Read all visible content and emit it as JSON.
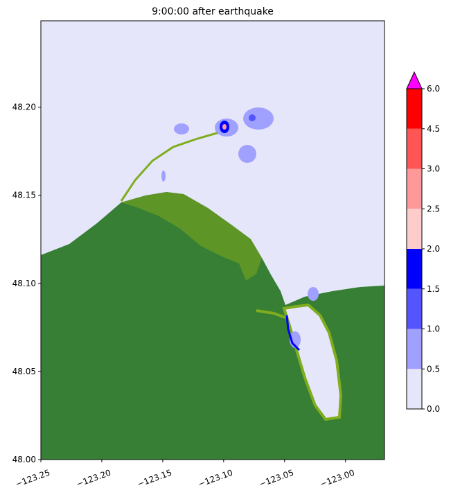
{
  "chart_data": {
    "type": "map",
    "title": "9:00:00 after earthquake",
    "xlim": [
      -123.25,
      -122.968
    ],
    "ylim": [
      48.0,
      48.249
    ],
    "xticks": [
      {
        "value": -123.25,
        "label": "−123.25"
      },
      {
        "value": -123.2,
        "label": "−123.20"
      },
      {
        "value": -123.15,
        "label": "−123.15"
      },
      {
        "value": -123.1,
        "label": "−123.10"
      },
      {
        "value": -123.05,
        "label": "−123.05"
      },
      {
        "value": -123.0,
        "label": "−123.00"
      }
    ],
    "yticks": [
      {
        "value": 48.0,
        "label": "48.00"
      },
      {
        "value": 48.05,
        "label": "48.05"
      },
      {
        "value": 48.1,
        "label": "48.10"
      },
      {
        "value": 48.15,
        "label": "48.15"
      },
      {
        "value": 48.2,
        "label": "48.20"
      }
    ],
    "colorbar": {
      "ticks": [
        {
          "value": 0,
          "label": "0.0"
        },
        {
          "value": 0.5,
          "label": "0.5"
        },
        {
          "value": 1,
          "label": "1.0"
        },
        {
          "value": 1.5,
          "label": "1.5"
        },
        {
          "value": 2,
          "label": "2.0"
        },
        {
          "value": 2.5,
          "label": "2.5"
        },
        {
          "value": 3,
          "label": "3.0"
        },
        {
          "value": 4.5,
          "label": "4.5"
        },
        {
          "value": 6,
          "label": "6.0"
        }
      ],
      "colors": [
        "#e6e6fa",
        "#a0a0ff",
        "#5555ff",
        "#0000ff",
        "#ffcccc",
        "#ff9999",
        "#ff5555",
        "#ff0000"
      ],
      "extend_color": "#ff00ff"
    }
  }
}
